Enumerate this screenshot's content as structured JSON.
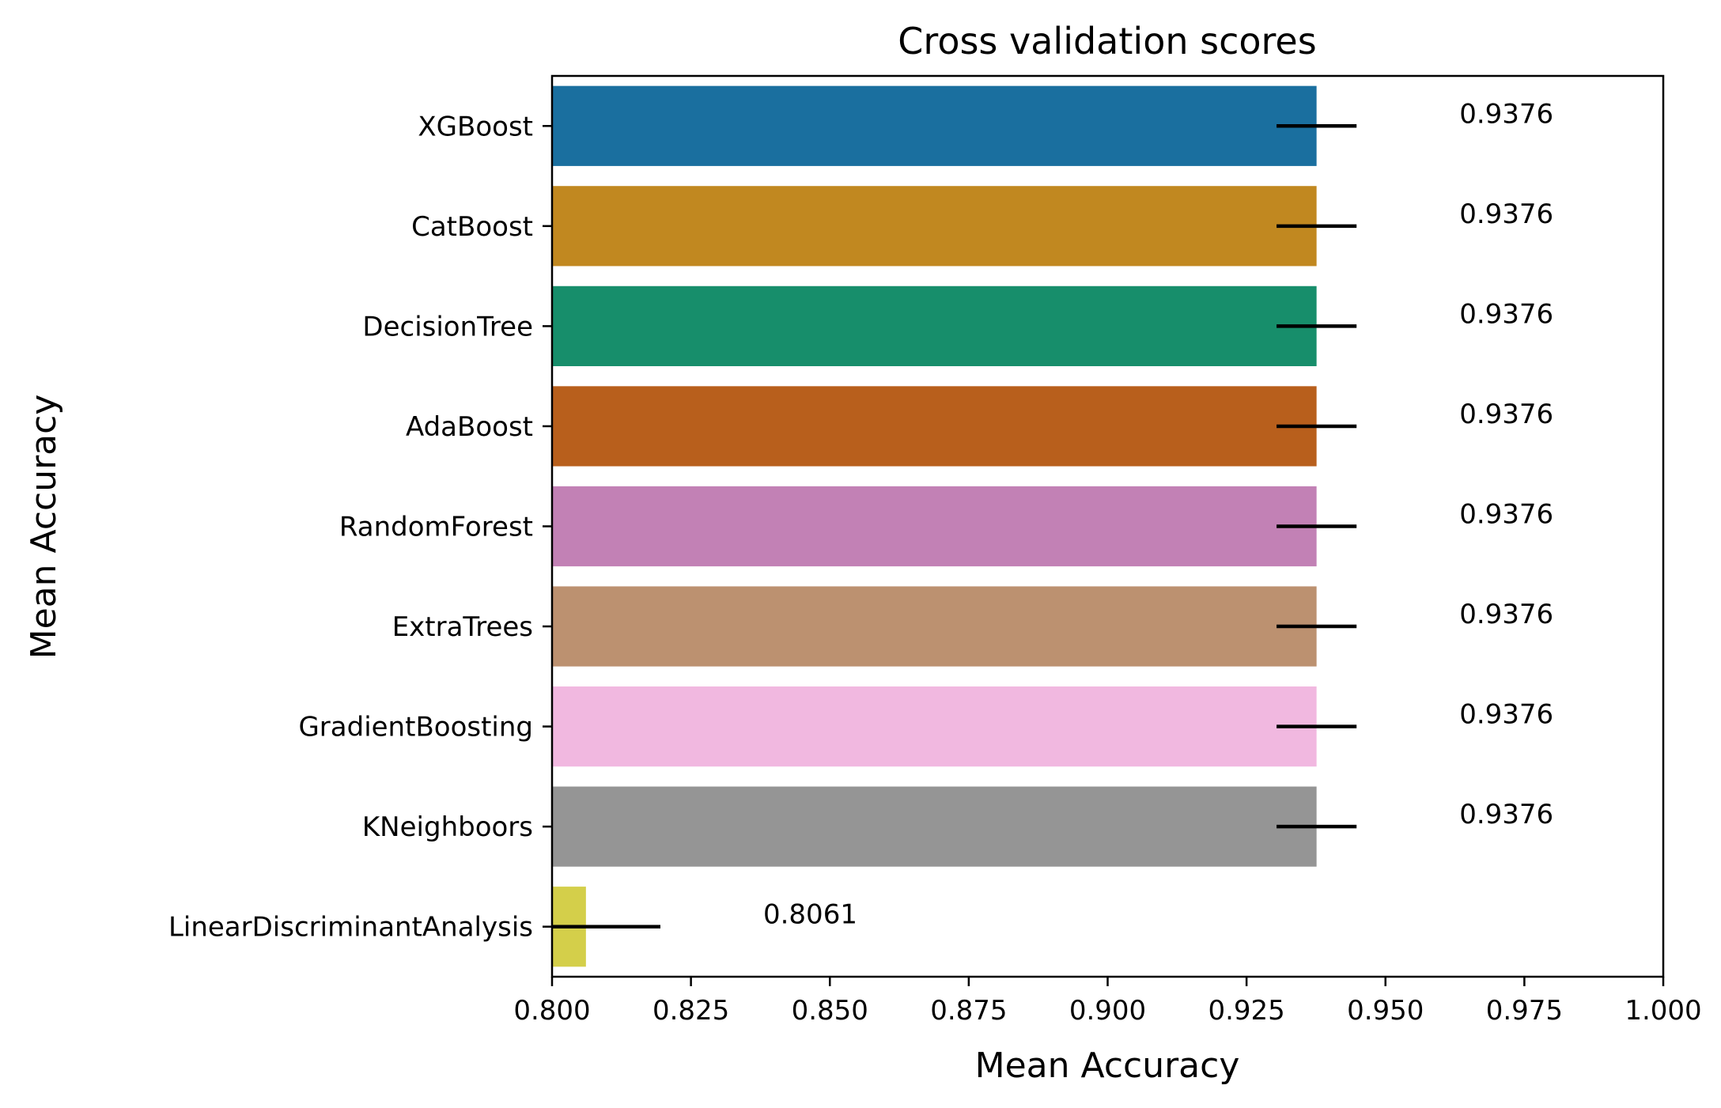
{
  "chart_data": {
    "type": "bar",
    "orientation": "horizontal",
    "title": "Cross validation scores",
    "xlabel": "Mean Accuracy",
    "ylabel": "Mean Accuracy",
    "xlim": [
      0.8,
      1.0
    ],
    "xticks": [
      0.8,
      0.825,
      0.85,
      0.875,
      0.9,
      0.925,
      0.95,
      0.975,
      1.0
    ],
    "xtick_labels": [
      "0.800",
      "0.825",
      "0.850",
      "0.875",
      "0.900",
      "0.925",
      "0.950",
      "0.975",
      "1.000"
    ],
    "grid": false,
    "legend": "none",
    "categories": [
      "XGBoost",
      "CatBoost",
      "DecisionTree",
      "AdaBoost",
      "RandomForest",
      "ExtraTrees",
      "GradientBoosting",
      "KNeighboors",
      "LinearDiscriminantAnalysis"
    ],
    "values": [
      0.9376,
      0.9376,
      0.9376,
      0.9376,
      0.9376,
      0.9376,
      0.9376,
      0.9376,
      0.8061
    ],
    "value_labels": [
      "0.9376",
      "0.9376",
      "0.9376",
      "0.9376",
      "0.9376",
      "0.9376",
      "0.9376",
      "0.9376",
      "0.8061"
    ],
    "errors": [
      0.0072,
      0.0072,
      0.0072,
      0.0072,
      0.0072,
      0.0072,
      0.0072,
      0.0072,
      0.0134
    ],
    "colors": [
      "#1a6f9f",
      "#c18820",
      "#178e6b",
      "#b85f1c",
      "#c281b5",
      "#bc9170",
      "#f1b8e0",
      "#959595",
      "#d4cf4a"
    ]
  }
}
